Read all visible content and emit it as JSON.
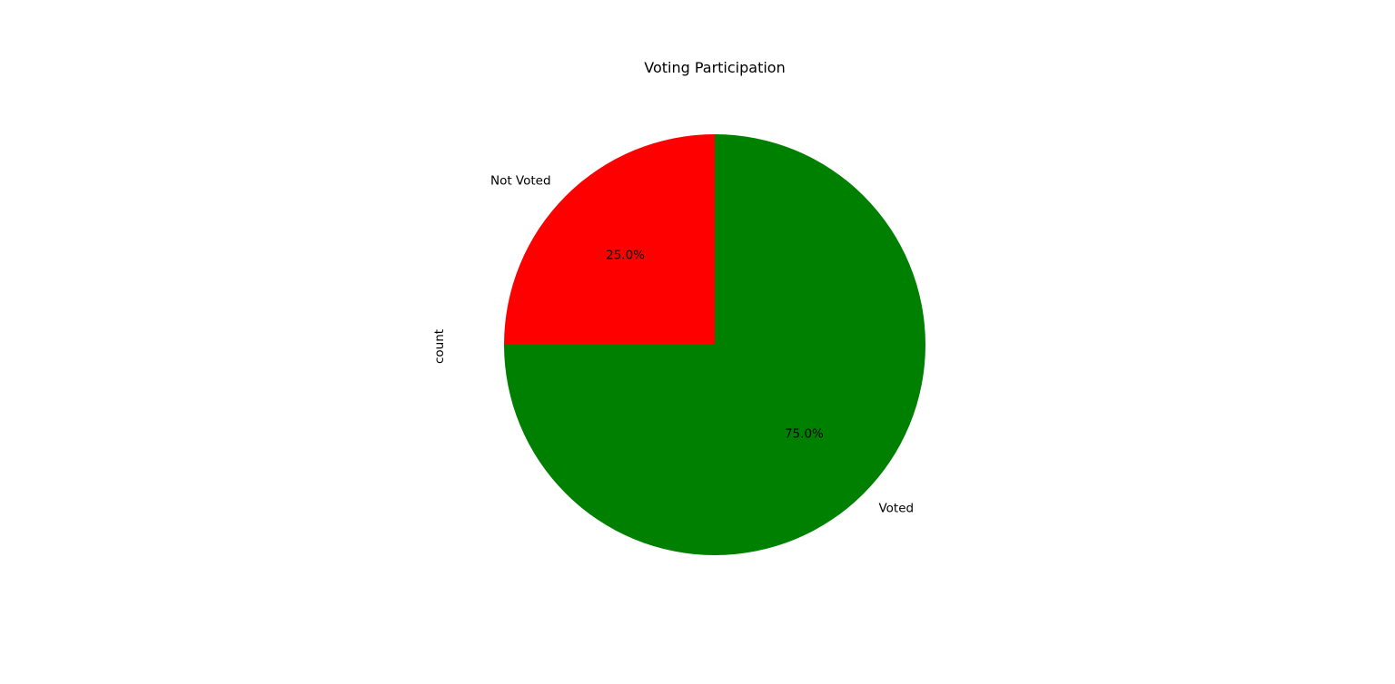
{
  "chart_data": {
    "type": "pie",
    "title": "Voting Participation",
    "ylabel": "count",
    "xlabel": "",
    "slices": [
      {
        "label": "Not Voted",
        "value": 25.0,
        "pct_label": "25.0%",
        "color": "#ff0000"
      },
      {
        "label": "Voted",
        "value": 75.0,
        "pct_label": "75.0%",
        "color": "#008000"
      }
    ],
    "start_angle": "90 degrees (top), counter-clockwise",
    "legend": "none"
  }
}
